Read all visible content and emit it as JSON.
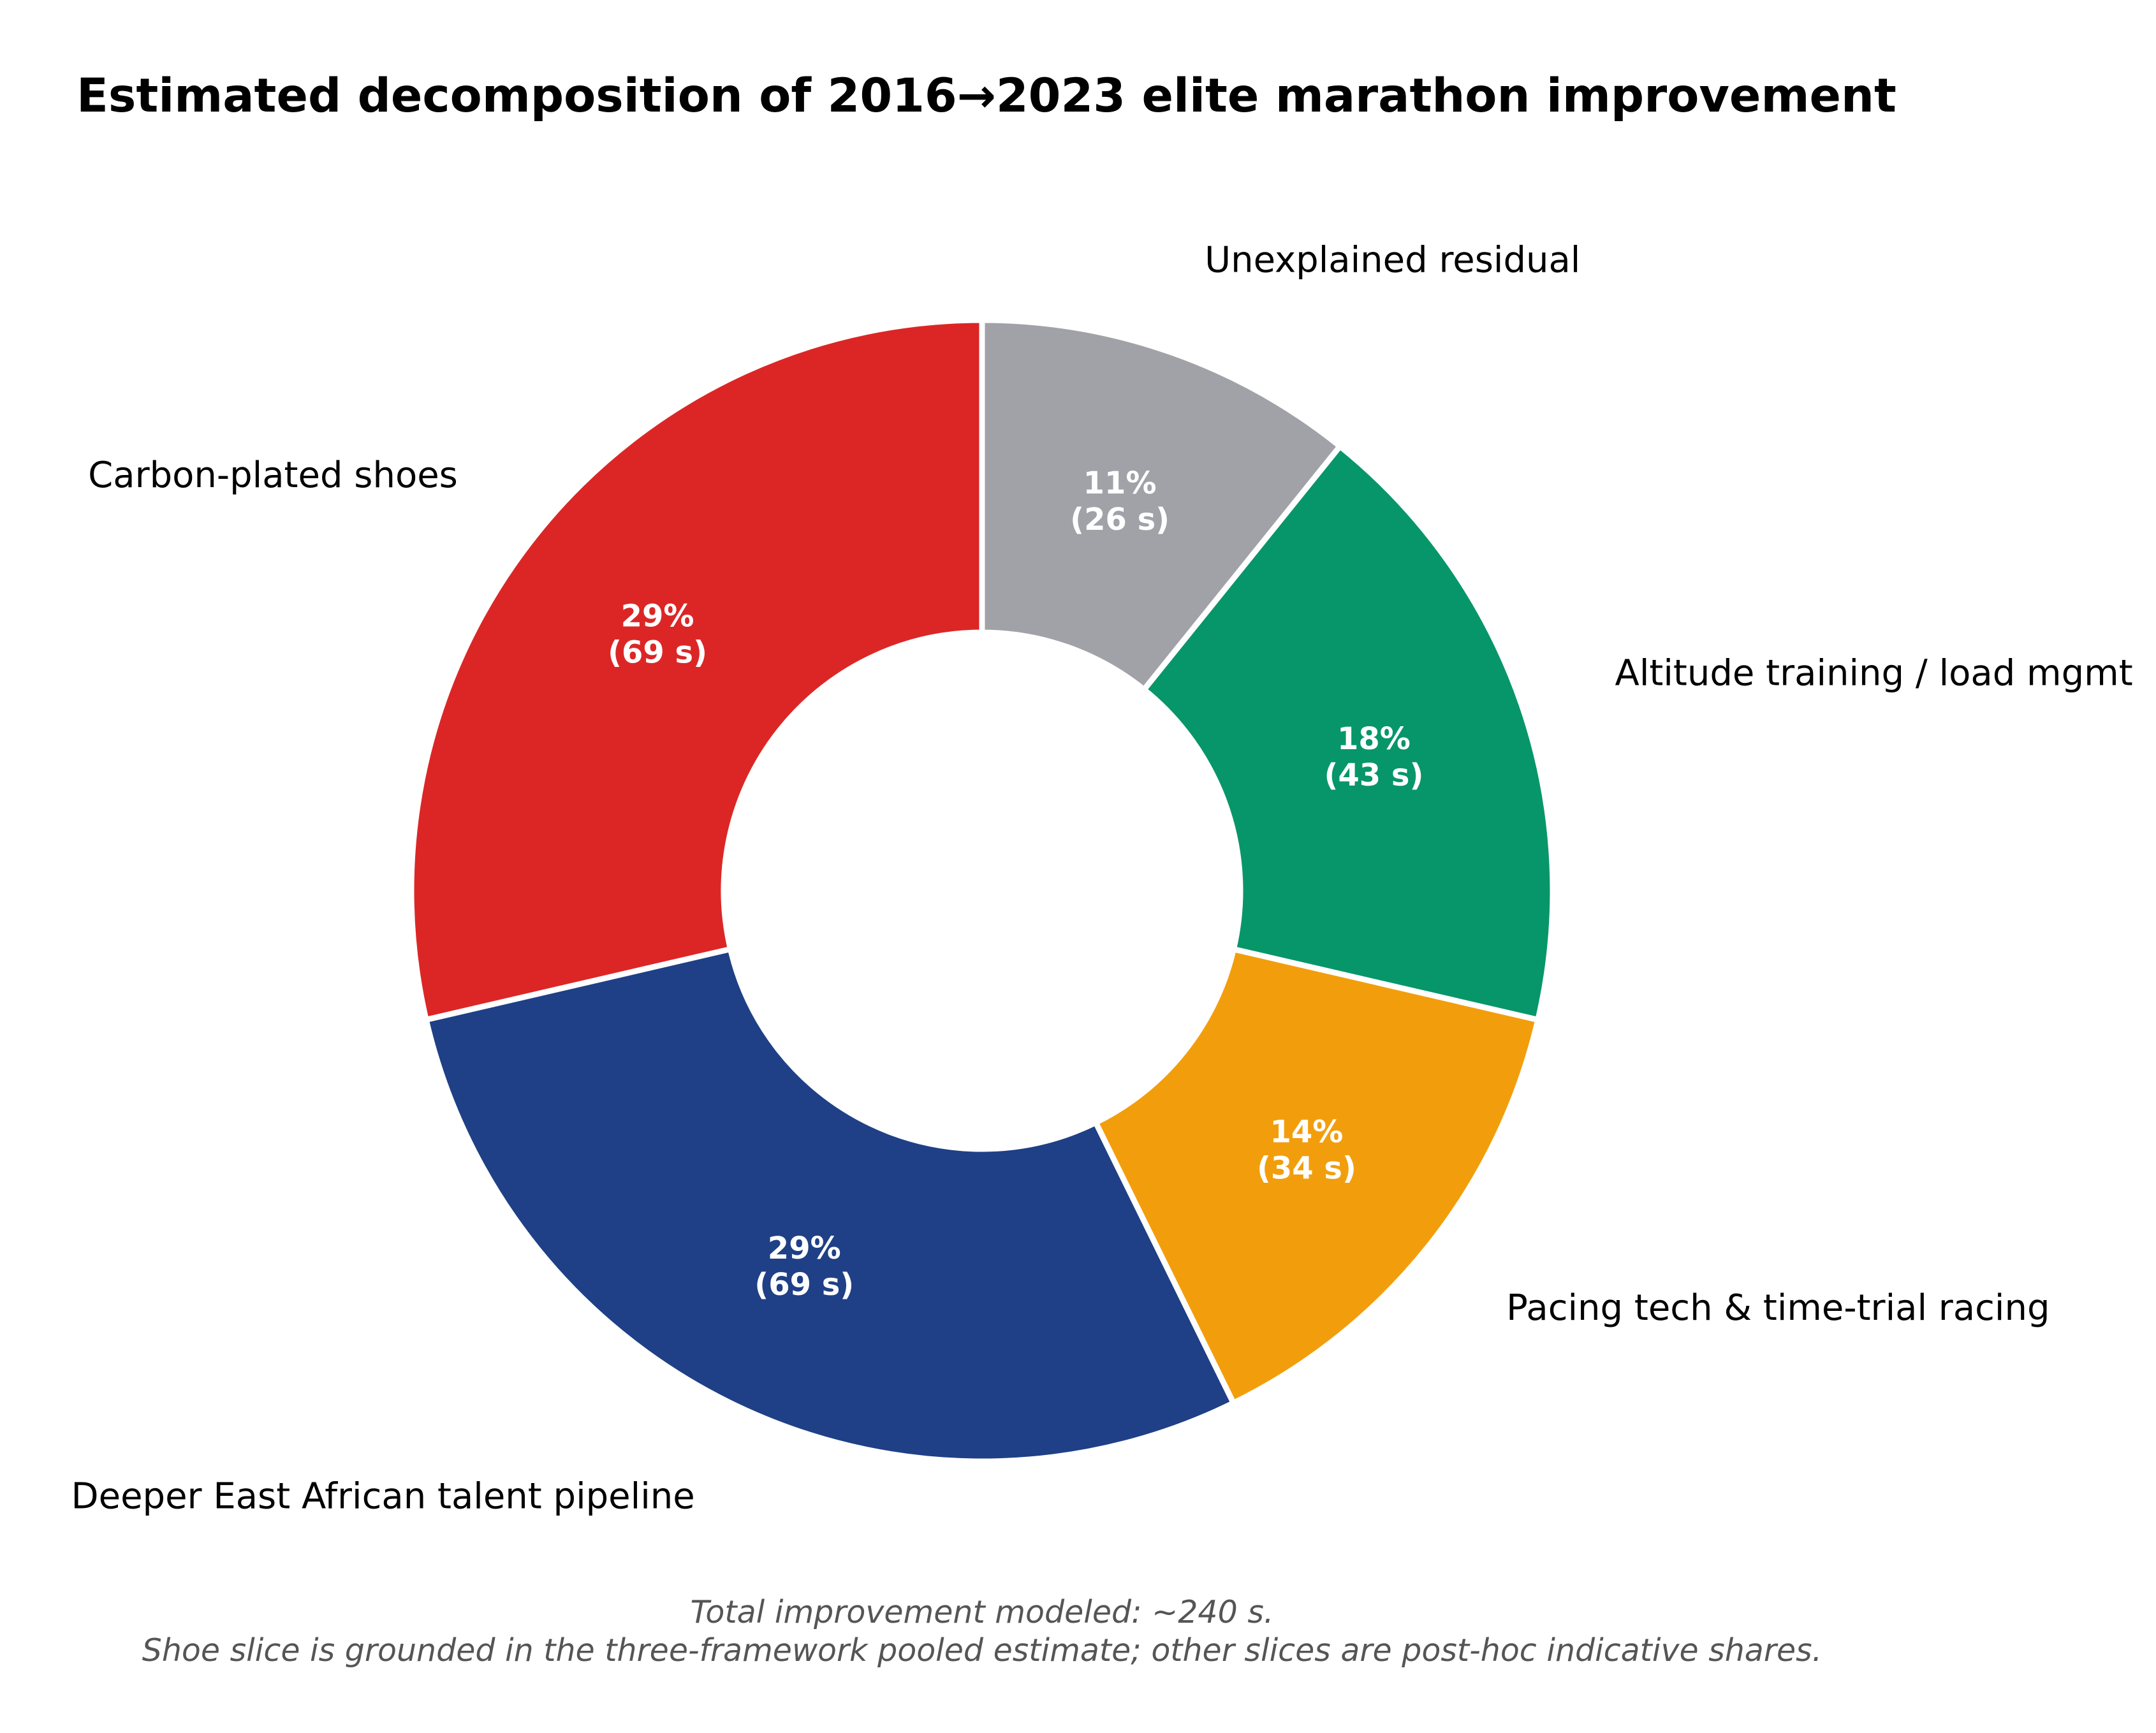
{
  "chart_data": {
    "type": "pie",
    "title": "Estimated decomposition of 2016→2023 elite marathon improvement",
    "donut": true,
    "start_angle_deg": 90,
    "direction": "counterclockwise",
    "slices": [
      {
        "label": "Carbon-plated shoes",
        "seconds": 69,
        "percent": 29,
        "pct_text": "29%",
        "sec_text": "(69 s)",
        "color": "#DC2626"
      },
      {
        "label": "Deeper East African talent pipeline",
        "seconds": 69,
        "percent": 29,
        "pct_text": "29%",
        "sec_text": "(69 s)",
        "color": "#1F4086"
      },
      {
        "label": "Pacing tech & time-trial racing",
        "seconds": 34,
        "percent": 14,
        "pct_text": "14%",
        "sec_text": "(34 s)",
        "color": "#F29E0C"
      },
      {
        "label": "Altitude training / load mgmt",
        "seconds": 43,
        "percent": 18,
        "pct_text": "18%",
        "sec_text": "(43 s)",
        "color": "#079669"
      },
      {
        "label": "Unexplained residual",
        "seconds": 26,
        "percent": 11,
        "pct_text": "11%",
        "sec_text": "(26 s)",
        "color": "#A1A1A8"
      }
    ],
    "footnote": {
      "line1": "Total improvement modeled: ~240 s.",
      "line2": "Shoe slice is grounded in the three-framework pooled estimate; other slices are post-hoc indicative shares."
    }
  }
}
